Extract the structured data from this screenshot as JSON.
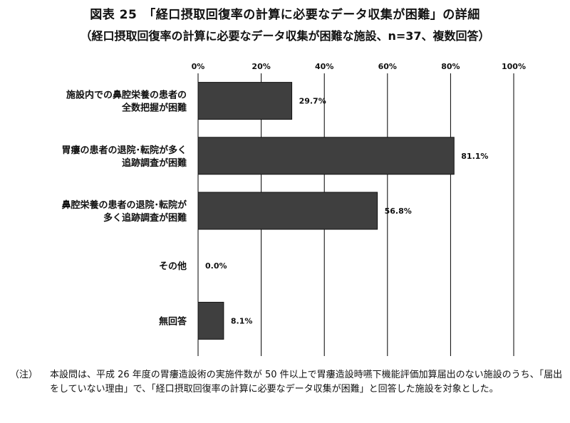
{
  "title": "図表 25　「経口摂取回復率の計算に必要なデータ収集が困難」の詳細",
  "subtitle": "（経口摂取回復率の計算に必要なデータ収集が困難な施設、n=37、複数回答）",
  "note_head": "（注）",
  "note_body": "本設問は、平成 26 年度の胃瘻造設術の実施件数が 50 件以上で胃瘻造設時嚥下機能評価加算届出のない施設のうち、「届出をしていない理由」で、「経口摂取回復率の計算に必要なデータ収集が困難」と回答した施設を対象とした。",
  "colors": {
    "bar": "#3f3f3f",
    "bar_stroke": "#111111",
    "grid": "#000000"
  },
  "chart_data": {
    "type": "bar",
    "orientation": "horizontal",
    "categories": [
      [
        "施設内での鼻腔栄養の患者の",
        "全数把握が困難"
      ],
      [
        "胃瘻の患者の退院･転院が多く",
        "追跡調査が困難"
      ],
      [
        "鼻腔栄養の患者の退院･転院が",
        "多く追跡調査が困難"
      ],
      [
        "その他"
      ],
      [
        "無回答"
      ]
    ],
    "values": [
      29.7,
      81.1,
      56.8,
      0.0,
      8.1
    ],
    "value_labels": [
      "29.7%",
      "81.1%",
      "56.8%",
      "0.0%",
      "8.1%"
    ],
    "xlim": [
      0,
      100
    ],
    "xticks": [
      0,
      20,
      40,
      60,
      80,
      100
    ],
    "xtick_labels": [
      "0%",
      "20%",
      "40%",
      "60%",
      "80%",
      "100%"
    ],
    "xaxis_position": "top",
    "grid": true
  }
}
